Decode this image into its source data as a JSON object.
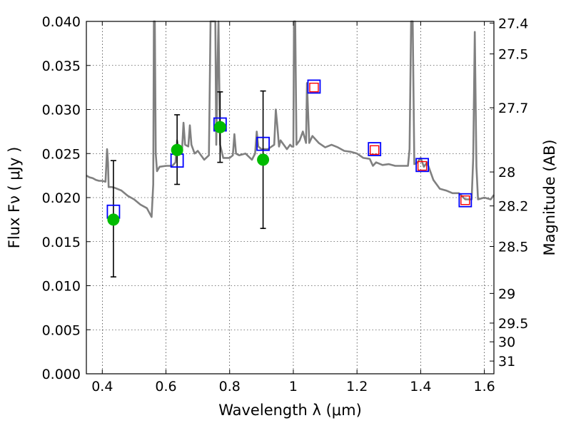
{
  "chart_data": {
    "type": "scatter",
    "xlabel": "Wavelength  λ (μm)",
    "ylabel": "Flux  Fν  ( μJy )",
    "ylabel_right": "Magnitude (AB)",
    "xlim": [
      0.35,
      1.63
    ],
    "ylim": [
      0.0,
      0.04
    ],
    "grid": true,
    "x_ticks": [
      0.4,
      0.6,
      0.8,
      1.0,
      1.2,
      1.4,
      1.6
    ],
    "x_tick_labels": [
      "0.4",
      "0.6",
      "0.8",
      "1",
      "1.2",
      "1.4",
      "1.6"
    ],
    "y_ticks": [
      0.0,
      0.005,
      0.01,
      0.015,
      0.02,
      0.025,
      0.03,
      0.035,
      0.04
    ],
    "y_tick_labels": [
      "0.000",
      "0.005",
      "0.010",
      "0.015",
      "0.020",
      "0.025",
      "0.030",
      "0.035",
      "0.040"
    ],
    "right_axis_ticks": [
      {
        "label": "27.4",
        "mag": 27.4
      },
      {
        "label": "27.5",
        "mag": 27.5
      },
      {
        "label": "27.7",
        "mag": 27.7
      },
      {
        "label": "28",
        "mag": 28.0
      },
      {
        "label": "28.2",
        "mag": 28.2
      },
      {
        "label": "28.5",
        "mag": 28.5
      },
      {
        "label": "29",
        "mag": 29.0
      },
      {
        "label": "29.5",
        "mag": 29.5
      },
      {
        "label": "30",
        "mag": 30.0
      },
      {
        "label": "31",
        "mag": 31.0
      }
    ],
    "series": [
      {
        "kind": "spectrum",
        "color": "#808080",
        "x": [
          0.35,
          0.36,
          0.37,
          0.38,
          0.39,
          0.4,
          0.41,
          0.415,
          0.418,
          0.42,
          0.43,
          0.44,
          0.46,
          0.48,
          0.5,
          0.52,
          0.54,
          0.555,
          0.56,
          0.562,
          0.565,
          0.568,
          0.572,
          0.58,
          0.6,
          0.62,
          0.63,
          0.635,
          0.64,
          0.65,
          0.655,
          0.66,
          0.67,
          0.675,
          0.68,
          0.69,
          0.7,
          0.72,
          0.735,
          0.74,
          0.745,
          0.75,
          0.755,
          0.758,
          0.762,
          0.765,
          0.77,
          0.78,
          0.8,
          0.81,
          0.815,
          0.82,
          0.83,
          0.85,
          0.87,
          0.88,
          0.885,
          0.89,
          0.9,
          0.92,
          0.94,
          0.945,
          0.95,
          0.955,
          0.96,
          0.98,
          0.99,
          0.995,
          1.0,
          1.002,
          1.006,
          1.01,
          1.02,
          1.03,
          1.04,
          1.043,
          1.05,
          1.06,
          1.08,
          1.1,
          1.12,
          1.14,
          1.16,
          1.18,
          1.2,
          1.22,
          1.24,
          1.25,
          1.26,
          1.28,
          1.3,
          1.32,
          1.34,
          1.36,
          1.365,
          1.37,
          1.375,
          1.38,
          1.39,
          1.4,
          1.41,
          1.42,
          1.44,
          1.46,
          1.48,
          1.5,
          1.52,
          1.54,
          1.56,
          1.565,
          1.57,
          1.575,
          1.58,
          1.6,
          1.62,
          1.63
        ],
        "y": [
          0.0225,
          0.0223,
          0.0222,
          0.022,
          0.0219,
          0.0219,
          0.0218,
          0.0255,
          0.024,
          0.0212,
          0.0212,
          0.0211,
          0.0208,
          0.0202,
          0.0198,
          0.0192,
          0.0188,
          0.0178,
          0.0215,
          0.04,
          0.04,
          0.025,
          0.023,
          0.0235,
          0.0236,
          0.0236,
          0.024,
          0.0265,
          0.0255,
          0.025,
          0.0285,
          0.026,
          0.0258,
          0.0282,
          0.026,
          0.025,
          0.0253,
          0.0243,
          0.0248,
          0.04,
          0.04,
          0.04,
          0.04,
          0.026,
          0.035,
          0.04,
          0.026,
          0.0245,
          0.0245,
          0.0248,
          0.0272,
          0.025,
          0.0248,
          0.025,
          0.0243,
          0.025,
          0.0275,
          0.0258,
          0.0255,
          0.0255,
          0.026,
          0.03,
          0.028,
          0.0258,
          0.0265,
          0.0255,
          0.026,
          0.0258,
          0.0258,
          0.04,
          0.04,
          0.026,
          0.0265,
          0.0275,
          0.0262,
          0.033,
          0.0262,
          0.027,
          0.0262,
          0.0257,
          0.026,
          0.0257,
          0.0253,
          0.0252,
          0.025,
          0.0245,
          0.0244,
          0.0236,
          0.024,
          0.0237,
          0.0238,
          0.0236,
          0.0236,
          0.0236,
          0.0255,
          0.04,
          0.04,
          0.0238,
          0.024,
          0.0245,
          0.0235,
          0.024,
          0.022,
          0.021,
          0.0208,
          0.0205,
          0.0205,
          0.0198,
          0.0198,
          0.0245,
          0.0388,
          0.0235,
          0.0198,
          0.02,
          0.0198,
          0.0203
        ]
      },
      {
        "kind": "model photometry",
        "marker": "square",
        "color": "#0000ff",
        "x": [
          0.435,
          0.635,
          0.77,
          0.905,
          1.065,
          1.255,
          1.405,
          1.54
        ],
        "y": [
          0.0184,
          0.0242,
          0.0283,
          0.0261,
          0.0326,
          0.0255,
          0.0237,
          0.0197
        ]
      },
      {
        "kind": "model photometry (NIR)",
        "marker": "square",
        "color": "#ff0000",
        "x": [
          1.065,
          1.255,
          1.405,
          1.54
        ],
        "y": [
          0.0325,
          0.0254,
          0.0236,
          0.0197
        ]
      },
      {
        "kind": "observed photometry",
        "marker": "circle",
        "color": "#00bb00",
        "x": [
          0.435,
          0.635,
          0.77,
          0.905
        ],
        "y": [
          0.0175,
          0.0254,
          0.028,
          0.0243
        ],
        "yerr_low": [
          0.011,
          0.0215,
          0.024,
          0.0165
        ],
        "yerr_high": [
          0.0242,
          0.0294,
          0.032,
          0.0321
        ]
      }
    ]
  }
}
